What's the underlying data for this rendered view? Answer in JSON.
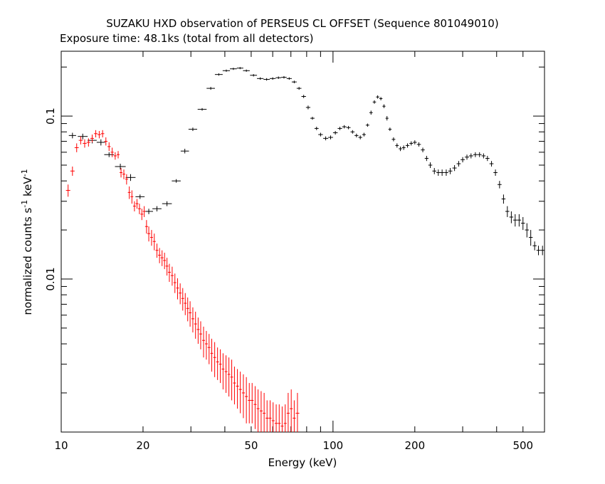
{
  "chart_data": {
    "type": "scatter",
    "title": "SUZAKU HXD observation of PERSEUS CL OFFSET (Sequence 801049010)",
    "subtitle": "Exposure time: 48.1ks (total from all detectors)",
    "xlabel": "Energy (keV)",
    "ylabel_main": "normalized counts s",
    "ylabel_mid": " keV",
    "ylabel_sup": "-1",
    "xscale": "log",
    "yscale": "log",
    "xlim": [
      10,
      600
    ],
    "ylim": [
      0.00115,
      0.25
    ],
    "x_ticks": [
      {
        "value": 10,
        "label": "10"
      },
      {
        "value": 20,
        "label": "20"
      },
      {
        "value": 50,
        "label": "50"
      },
      {
        "value": 100,
        "label": "100"
      },
      {
        "value": 200,
        "label": "200"
      },
      {
        "value": 500,
        "label": "500"
      }
    ],
    "y_ticks": [
      {
        "value": 0.1,
        "label": "0.1"
      },
      {
        "value": 0.01,
        "label": "0.01"
      }
    ],
    "series": [
      {
        "color": "#000000",
        "points": [
          [
            11.0,
            0.076,
            0.003
          ],
          [
            12.0,
            0.075,
            0.003
          ],
          [
            13.0,
            0.071,
            0.003
          ],
          [
            14.0,
            0.069,
            0.003
          ],
          [
            15.0,
            0.058,
            0.002
          ],
          [
            16.5,
            0.049,
            0.002
          ],
          [
            18.0,
            0.042,
            0.002
          ],
          [
            19.5,
            0.032,
            0.001
          ],
          [
            21.0,
            0.026,
            0.001
          ],
          [
            22.5,
            0.027,
            0.001
          ],
          [
            24.5,
            0.029,
            0.001
          ],
          [
            26.5,
            0.04,
            0.001
          ],
          [
            28.5,
            0.061,
            0.002
          ],
          [
            30.5,
            0.083,
            0.002
          ],
          [
            33.0,
            0.11,
            0.002
          ],
          [
            35.5,
            0.148,
            0.003
          ],
          [
            38.0,
            0.18,
            0.003
          ],
          [
            40.5,
            0.19,
            0.003
          ],
          [
            43.0,
            0.195,
            0.003
          ],
          [
            45.5,
            0.197,
            0.003
          ],
          [
            48.0,
            0.19,
            0.003
          ],
          [
            51.0,
            0.178,
            0.003
          ],
          [
            54.0,
            0.17,
            0.003
          ],
          [
            57.0,
            0.168,
            0.003
          ],
          [
            60.0,
            0.17,
            0.003
          ],
          [
            63.0,
            0.172,
            0.003
          ],
          [
            66.0,
            0.173,
            0.003
          ],
          [
            69.0,
            0.17,
            0.003
          ],
          [
            72.0,
            0.162,
            0.003
          ],
          [
            75.0,
            0.148,
            0.003
          ],
          [
            78.0,
            0.132,
            0.003
          ],
          [
            81.0,
            0.113,
            0.003
          ],
          [
            84.0,
            0.097,
            0.002
          ],
          [
            87.0,
            0.084,
            0.002
          ],
          [
            90.0,
            0.077,
            0.002
          ],
          [
            94.0,
            0.073,
            0.002
          ],
          [
            98.0,
            0.074,
            0.002
          ],
          [
            102.0,
            0.079,
            0.002
          ],
          [
            106.0,
            0.084,
            0.002
          ],
          [
            110.0,
            0.086,
            0.002
          ],
          [
            114.0,
            0.085,
            0.002
          ],
          [
            118.0,
            0.08,
            0.002
          ],
          [
            122.0,
            0.076,
            0.002
          ],
          [
            126.0,
            0.074,
            0.002
          ],
          [
            130.0,
            0.077,
            0.002
          ],
          [
            134.0,
            0.088,
            0.002
          ],
          [
            138.0,
            0.105,
            0.003
          ],
          [
            142.0,
            0.122,
            0.003
          ],
          [
            146.0,
            0.131,
            0.003
          ],
          [
            150.0,
            0.128,
            0.003
          ],
          [
            154.0,
            0.115,
            0.003
          ],
          [
            158.0,
            0.097,
            0.003
          ],
          [
            162.0,
            0.083,
            0.002
          ],
          [
            167.0,
            0.072,
            0.002
          ],
          [
            172.0,
            0.066,
            0.002
          ],
          [
            177.0,
            0.063,
            0.002
          ],
          [
            182.0,
            0.064,
            0.002
          ],
          [
            188.0,
            0.066,
            0.002
          ],
          [
            194.0,
            0.068,
            0.002
          ],
          [
            200.0,
            0.069,
            0.002
          ],
          [
            207.0,
            0.067,
            0.002
          ],
          [
            214.0,
            0.062,
            0.002
          ],
          [
            221.0,
            0.055,
            0.002
          ],
          [
            228.0,
            0.05,
            0.002
          ],
          [
            236.0,
            0.046,
            0.002
          ],
          [
            244.0,
            0.045,
            0.002
          ],
          [
            252.0,
            0.045,
            0.002
          ],
          [
            261.0,
            0.045,
            0.002
          ],
          [
            270.0,
            0.046,
            0.002
          ],
          [
            280.0,
            0.048,
            0.002
          ],
          [
            290.0,
            0.051,
            0.002
          ],
          [
            300.0,
            0.054,
            0.002
          ],
          [
            311.0,
            0.056,
            0.002
          ],
          [
            322.0,
            0.057,
            0.002
          ],
          [
            334.0,
            0.058,
            0.002
          ],
          [
            346.0,
            0.058,
            0.002
          ],
          [
            358.0,
            0.057,
            0.002
          ],
          [
            370.0,
            0.055,
            0.002
          ],
          [
            383.0,
            0.051,
            0.002
          ],
          [
            396.0,
            0.045,
            0.002
          ],
          [
            410.0,
            0.038,
            0.002
          ],
          [
            424.0,
            0.031,
            0.002
          ],
          [
            438.0,
            0.026,
            0.002
          ],
          [
            453.0,
            0.024,
            0.002
          ],
          [
            468.0,
            0.023,
            0.002
          ],
          [
            484.0,
            0.023,
            0.002
          ],
          [
            500.0,
            0.022,
            0.002
          ],
          [
            517.0,
            0.02,
            0.002
          ],
          [
            534.0,
            0.018,
            0.002
          ],
          [
            552.0,
            0.016,
            0.001
          ],
          [
            570.0,
            0.015,
            0.001
          ],
          [
            590.0,
            0.015,
            0.001
          ]
        ]
      },
      {
        "color": "#ff0000",
        "points": [
          [
            10.6,
            0.035,
            0.003
          ],
          [
            11.0,
            0.046,
            0.003
          ],
          [
            11.4,
            0.064,
            0.004
          ],
          [
            11.8,
            0.071,
            0.004
          ],
          [
            12.2,
            0.068,
            0.004
          ],
          [
            12.6,
            0.069,
            0.004
          ],
          [
            13.0,
            0.073,
            0.004
          ],
          [
            13.4,
            0.078,
            0.004
          ],
          [
            13.8,
            0.077,
            0.004
          ],
          [
            14.2,
            0.078,
            0.004
          ],
          [
            14.6,
            0.07,
            0.004
          ],
          [
            15.0,
            0.065,
            0.004
          ],
          [
            15.4,
            0.06,
            0.004
          ],
          [
            15.8,
            0.057,
            0.003
          ],
          [
            16.2,
            0.058,
            0.003
          ],
          [
            16.6,
            0.045,
            0.003
          ],
          [
            17.0,
            0.044,
            0.003
          ],
          [
            17.4,
            0.041,
            0.003
          ],
          [
            17.8,
            0.034,
            0.003
          ],
          [
            18.2,
            0.032,
            0.003
          ],
          [
            18.6,
            0.028,
            0.002
          ],
          [
            19.0,
            0.029,
            0.002
          ],
          [
            19.4,
            0.027,
            0.002
          ],
          [
            19.8,
            0.025,
            0.002
          ],
          [
            20.2,
            0.026,
            0.002
          ],
          [
            20.6,
            0.021,
            0.002
          ],
          [
            21.0,
            0.019,
            0.002
          ],
          [
            21.5,
            0.018,
            0.002
          ],
          [
            22.0,
            0.017,
            0.002
          ],
          [
            22.5,
            0.015,
            0.0015
          ],
          [
            23.0,
            0.014,
            0.0015
          ],
          [
            23.5,
            0.0135,
            0.0015
          ],
          [
            24.0,
            0.013,
            0.0015
          ],
          [
            24.5,
            0.012,
            0.0015
          ],
          [
            25.0,
            0.011,
            0.0014
          ],
          [
            25.6,
            0.0105,
            0.0014
          ],
          [
            26.2,
            0.0095,
            0.0013
          ],
          [
            26.8,
            0.0088,
            0.0013
          ],
          [
            27.4,
            0.0082,
            0.0012
          ],
          [
            28.0,
            0.0076,
            0.0012
          ],
          [
            28.6,
            0.0071,
            0.0011
          ],
          [
            29.2,
            0.0066,
            0.0011
          ],
          [
            29.8,
            0.0062,
            0.0011
          ],
          [
            30.5,
            0.0057,
            0.001
          ],
          [
            31.2,
            0.0053,
            0.001
          ],
          [
            31.9,
            0.0049,
            0.0009
          ],
          [
            32.6,
            0.0046,
            0.0009
          ],
          [
            33.4,
            0.0042,
            0.0009
          ],
          [
            34.2,
            0.004,
            0.0008
          ],
          [
            35.0,
            0.0038,
            0.0008
          ],
          [
            35.8,
            0.0035,
            0.0008
          ],
          [
            36.7,
            0.0033,
            0.0008
          ],
          [
            37.6,
            0.0031,
            0.0007
          ],
          [
            38.5,
            0.003,
            0.0007
          ],
          [
            39.4,
            0.0028,
            0.0007
          ],
          [
            40.4,
            0.0027,
            0.0007
          ],
          [
            41.4,
            0.0026,
            0.0007
          ],
          [
            42.4,
            0.0025,
            0.0007
          ],
          [
            43.4,
            0.0023,
            0.0006
          ],
          [
            44.5,
            0.0022,
            0.0006
          ],
          [
            45.6,
            0.0021,
            0.0006
          ],
          [
            46.8,
            0.002,
            0.0006
          ],
          [
            48.0,
            0.0019,
            0.0006
          ],
          [
            49.2,
            0.0018,
            0.0005
          ],
          [
            50.4,
            0.0018,
            0.0005
          ],
          [
            51.7,
            0.0017,
            0.0005
          ],
          [
            53.0,
            0.0016,
            0.0005
          ],
          [
            54.4,
            0.00155,
            0.0005
          ],
          [
            55.8,
            0.0015,
            0.0005
          ],
          [
            57.2,
            0.0014,
            0.0004
          ],
          [
            58.7,
            0.0014,
            0.0004
          ],
          [
            60.2,
            0.00135,
            0.0004
          ],
          [
            61.8,
            0.0013,
            0.0004
          ],
          [
            63.4,
            0.0013,
            0.0004
          ],
          [
            65.0,
            0.00125,
            0.0004
          ],
          [
            66.7,
            0.0013,
            0.0004
          ],
          [
            68.4,
            0.0015,
            0.0005
          ],
          [
            70.2,
            0.0016,
            0.0005
          ],
          [
            72.0,
            0.0014,
            0.0004
          ],
          [
            74.0,
            0.0015,
            0.0005
          ]
        ]
      }
    ]
  }
}
